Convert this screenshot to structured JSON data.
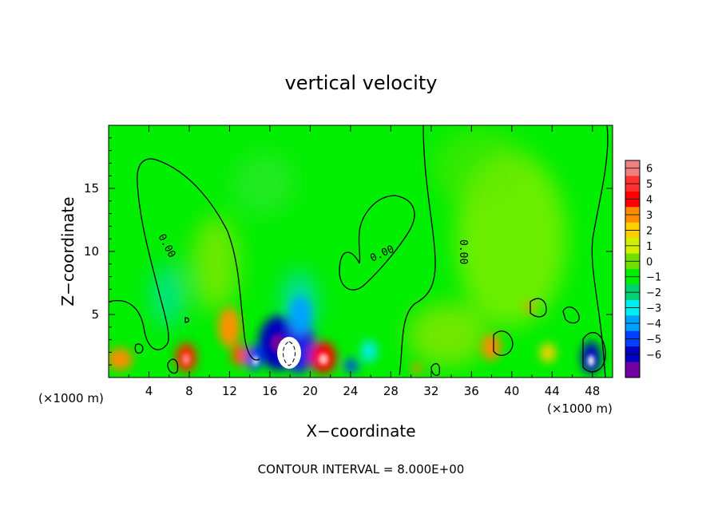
{
  "chart_data": {
    "type": "heatmap",
    "title": "vertical velocity",
    "xlabel": "X−coordinate",
    "ylabel": "Z−coordinate",
    "x_unit_label": "(×1000 m)",
    "y_unit_label": "(×1000 m)",
    "xlim": [
      0,
      50
    ],
    "ylim": [
      0,
      20
    ],
    "x_ticks": [
      4,
      8,
      12,
      16,
      20,
      24,
      28,
      32,
      36,
      40,
      44,
      48
    ],
    "y_ticks": [
      5,
      10,
      15
    ],
    "x_tick_labels": [
      "4",
      "8",
      "12",
      "16",
      "20",
      "24",
      "28",
      "32",
      "36",
      "40",
      "44",
      "48"
    ],
    "y_tick_labels": [
      "5",
      "10",
      "15"
    ],
    "footer": "CONTOUR INTERVAL = 8.000E+00",
    "contour_label": "0.00",
    "colorbar": {
      "levels": [
        6,
        5,
        4,
        3,
        2,
        1,
        0,
        -1,
        -2,
        -3,
        -4,
        -5,
        -6
      ],
      "level_labels": [
        "6",
        "5",
        "4",
        "3",
        "2",
        "1",
        "0",
        "−1",
        "−2",
        "−3",
        "−4",
        "−5",
        "−6"
      ],
      "colors": [
        "#f08080",
        "#ff3030",
        "#ff0000",
        "#ff8c00",
        "#ffd000",
        "#d0f000",
        "#70e000",
        "#00ee00",
        "#00d070",
        "#00eeee",
        "#00a0ff",
        "#0040ff",
        "#0000c0",
        "#7000a0"
      ]
    },
    "features": [
      {
        "x": 2,
        "z": 1.5,
        "value": 3
      },
      {
        "x": 7.5,
        "z": 1.5,
        "value": 5
      },
      {
        "x": 11.5,
        "z": 3,
        "value": 3
      },
      {
        "x": 13.5,
        "z": 1.0,
        "value": 4
      },
      {
        "x": 14.5,
        "z": 1.5,
        "value": -5
      },
      {
        "x": 16.5,
        "z": 2,
        "value": -5
      },
      {
        "x": 18,
        "z": 1.8,
        "value": -6
      },
      {
        "x": 19,
        "z": 4,
        "value": -3
      },
      {
        "x": 21,
        "z": 1.5,
        "value": 5
      },
      {
        "x": 23.5,
        "z": 1.0,
        "value": -4
      },
      {
        "x": 39,
        "z": 2.5,
        "value": 3
      },
      {
        "x": 44,
        "z": 2.0,
        "value": 2
      },
      {
        "x": 47.5,
        "z": 1.5,
        "value": -5
      },
      {
        "x": 6.5,
        "z": 7,
        "value": -2
      },
      {
        "x": 11,
        "z": 8.5,
        "value": 1
      },
      {
        "x": 40,
        "z": 9,
        "value": 1
      }
    ]
  }
}
